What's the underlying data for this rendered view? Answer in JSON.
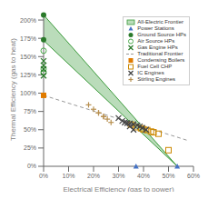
{
  "chart_data": {
    "type": "scatter",
    "xlabel": "Electrical Efficiency (gas to power)",
    "ylabel": "Thermal Efficiency (gas to heat)",
    "xlim": [
      0,
      0.6
    ],
    "ylim": [
      0,
      2.1
    ],
    "xticks": [
      {
        "value": 0.0,
        "label": "0%"
      },
      {
        "value": 0.1,
        "label": "10%"
      },
      {
        "value": 0.2,
        "label": "20%"
      },
      {
        "value": 0.3,
        "label": "30%"
      },
      {
        "value": 0.4,
        "label": "40%"
      },
      {
        "value": 0.5,
        "label": "50%"
      },
      {
        "value": 0.6,
        "label": "60%"
      }
    ],
    "yticks": [
      {
        "value": 0.0,
        "label": "0%"
      },
      {
        "value": 0.25,
        "label": "25%"
      },
      {
        "value": 0.5,
        "label": "50%"
      },
      {
        "value": 0.75,
        "label": "75%"
      },
      {
        "value": 1.0,
        "label": "100%"
      },
      {
        "value": 1.25,
        "label": "125%"
      },
      {
        "value": 1.5,
        "label": "150%"
      },
      {
        "value": 1.75,
        "label": "175%"
      },
      {
        "value": 2.0,
        "label": "200%"
      }
    ],
    "grid": false,
    "legend": "upper right",
    "series": [
      {
        "name": "All-Electric Frontier",
        "type": "area",
        "color": "#3a9a3a",
        "x": [
          0.0,
          0.535
        ],
        "y_lower": [
          1.72,
          0.0
        ],
        "y_upper": [
          2.07,
          0.0
        ]
      },
      {
        "name": "Power Stations",
        "type": "scatter",
        "marker": "triangle",
        "color": "#4472c4",
        "x": [
          0.37,
          0.535
        ],
        "y": [
          0.0,
          0.0
        ]
      },
      {
        "name": "Ground Source HPs",
        "type": "scatter",
        "marker": "circle",
        "color": "#2a7a2a",
        "x": [
          0.0,
          0.0
        ],
        "y": [
          2.07,
          1.73
        ]
      },
      {
        "name": "Air Source HPs",
        "type": "scatter",
        "marker": "open_circle",
        "color": "#4aaa4a",
        "x": [
          0.0,
          0.0,
          0.0
        ],
        "y": [
          1.58,
          1.33,
          1.28
        ]
      },
      {
        "name": "Gas Engine HPs",
        "type": "scatter",
        "marker": "x",
        "color": "#2a7a2a",
        "x": [
          0.0,
          0.0,
          0.0,
          0.0
        ],
        "y": [
          1.44,
          1.38,
          1.33,
          1.24
        ]
      },
      {
        "name": "Traditional Frontier",
        "type": "line",
        "line_style": "dashed",
        "color": "#999999",
        "x": [
          0.0,
          0.58
        ],
        "y": [
          0.97,
          0.35
        ]
      },
      {
        "name": "Condensing Boilers",
        "type": "scatter",
        "marker": "square",
        "color": "#e07b00",
        "x": [
          0.0
        ],
        "y": [
          0.97
        ]
      },
      {
        "name": "Fuel Cell CHP",
        "type": "scatter",
        "marker": "open_square",
        "color": "#cc8800",
        "x": [
          0.35,
          0.37,
          0.39,
          0.4,
          0.415,
          0.43,
          0.44,
          0.46,
          0.5
        ],
        "y": [
          0.57,
          0.535,
          0.52,
          0.505,
          0.495,
          0.475,
          0.465,
          0.445,
          0.22
        ]
      },
      {
        "name": "IC Engines",
        "type": "scatter",
        "marker": "x",
        "color": "#444444",
        "x": [
          0.3,
          0.315,
          0.325,
          0.335,
          0.345,
          0.36,
          0.375,
          0.385,
          0.395,
          0.41,
          0.345,
          0.36
        ],
        "y": [
          0.66,
          0.62,
          0.6,
          0.59,
          0.585,
          0.575,
          0.56,
          0.545,
          0.525,
          0.5,
          0.545,
          0.5
        ]
      },
      {
        "name": "Stirling Engines",
        "type": "scatter",
        "marker": "plus",
        "color": "#b89050",
        "x": [
          0.18,
          0.2,
          0.22,
          0.24,
          0.255,
          0.27,
          0.22,
          0.24
        ],
        "y": [
          0.84,
          0.78,
          0.73,
          0.68,
          0.645,
          0.6,
          0.73,
          0.68
        ]
      }
    ]
  }
}
